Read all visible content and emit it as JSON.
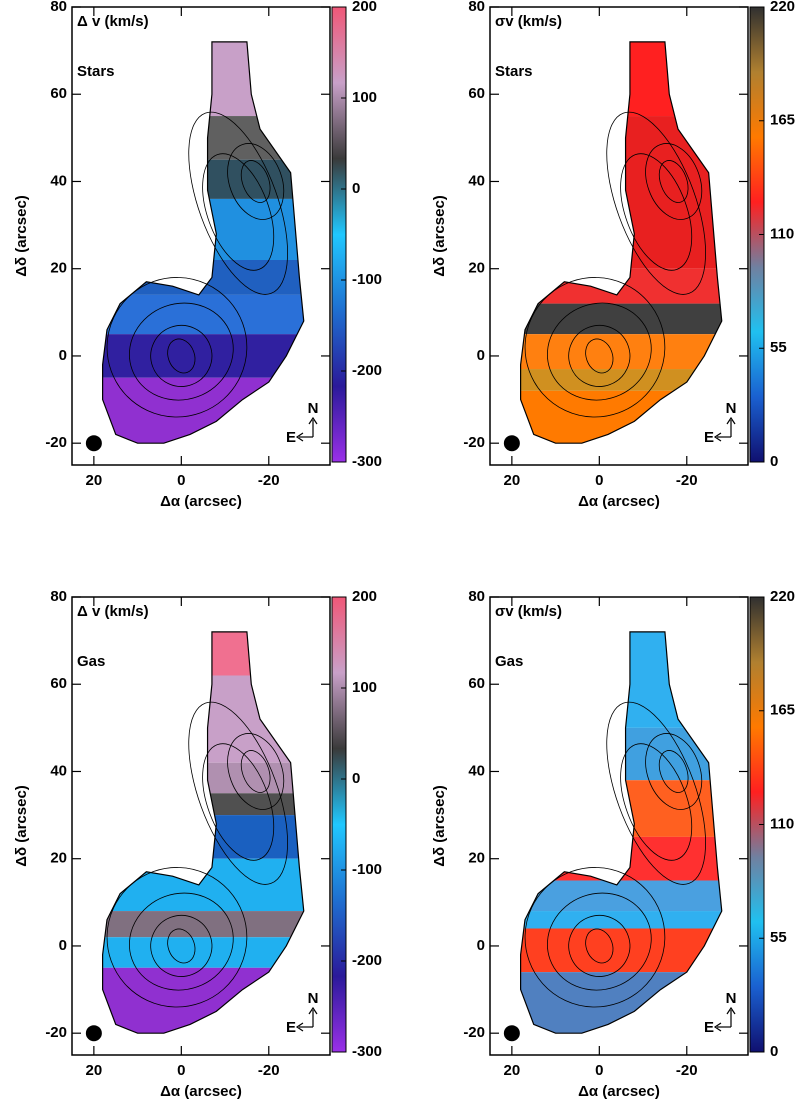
{
  "chart_data": [
    {
      "type": "map",
      "title": "Δ v (km/s)",
      "label": "Stars",
      "xlabel": "Δα (arcsec)",
      "ylabel": "Δδ (arcsec)",
      "xlim": [
        25,
        -34
      ],
      "ylim": [
        -25,
        80
      ],
      "xticks": [
        20,
        0,
        -20
      ],
      "yticks": [
        -20,
        0,
        20,
        40,
        60,
        80
      ],
      "colorbar": {
        "lim": [
          -300,
          200
        ],
        "ticks": [
          -300,
          -200,
          -100,
          0,
          100,
          200
        ],
        "colors": [
          "#9a30e8",
          "#2a1a9a",
          "#1f6fd0",
          "#20c8ff",
          "#3a3a3a",
          "#c8a0c8",
          "#f05878"
        ]
      },
      "compass": {
        "north": "N",
        "east": "E"
      }
    },
    {
      "type": "map",
      "title": "σv (km/s)",
      "label": "Stars",
      "xlabel": "Δα (arcsec)",
      "ylabel": "Δδ (arcsec)",
      "xlim": [
        25,
        -34
      ],
      "ylim": [
        -25,
        80
      ],
      "xticks": [
        20,
        0,
        -20
      ],
      "yticks": [
        -20,
        0,
        20,
        40,
        60,
        80
      ],
      "colorbar": {
        "lim": [
          0,
          220
        ],
        "ticks": [
          0,
          55,
          110,
          165,
          220
        ],
        "colors": [
          "#101070",
          "#1a60d0",
          "#20c0f0",
          "#7080a0",
          "#ff2020",
          "#ff7a00",
          "#b08030",
          "#303030"
        ]
      },
      "compass": {
        "north": "N",
        "east": "E"
      }
    },
    {
      "type": "map",
      "title": "Δ v (km/s)",
      "label": "Gas",
      "xlabel": "Δα (arcsec)",
      "ylabel": "Δδ (arcsec)",
      "xlim": [
        25,
        -34
      ],
      "ylim": [
        -25,
        80
      ],
      "xticks": [
        20,
        0,
        -20
      ],
      "yticks": [
        -20,
        0,
        20,
        40,
        60,
        80
      ],
      "colorbar": {
        "lim": [
          -300,
          200
        ],
        "ticks": [
          -300,
          -200,
          -100,
          0,
          100,
          200
        ],
        "colors": [
          "#9a30e8",
          "#2a1a9a",
          "#1f6fd0",
          "#20c8ff",
          "#3a3a3a",
          "#c8a0c8",
          "#f05878"
        ]
      },
      "compass": {
        "north": "N",
        "east": "E"
      }
    },
    {
      "type": "map",
      "title": "σv (km/s)",
      "label": "Gas",
      "xlabel": "Δα (arcsec)",
      "ylabel": "Δδ (arcsec)",
      "xlim": [
        25,
        -34
      ],
      "ylim": [
        -25,
        80
      ],
      "xticks": [
        20,
        0,
        -20
      ],
      "yticks": [
        -20,
        0,
        20,
        40,
        60,
        80
      ],
      "colorbar": {
        "lim": [
          0,
          220
        ],
        "ticks": [
          0,
          55,
          110,
          165,
          220
        ],
        "colors": [
          "#101070",
          "#1a60d0",
          "#20c0f0",
          "#7080a0",
          "#ff2020",
          "#ff7a00",
          "#b08030",
          "#303030"
        ]
      },
      "compass": {
        "north": "N",
        "east": "E"
      }
    }
  ]
}
